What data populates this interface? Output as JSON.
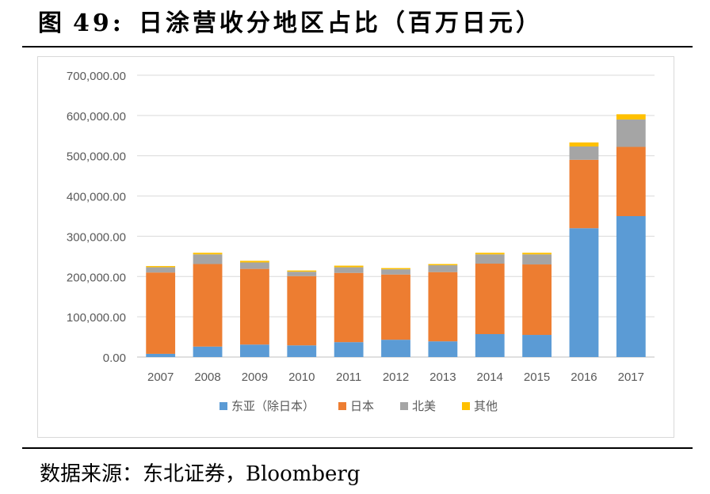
{
  "figure": {
    "label": "图",
    "number": "49:",
    "title": "日涂营收分地区占比（百万日元）"
  },
  "source": "数据来源：东北证券，Bloomberg",
  "chart_data": {
    "type": "bar",
    "stacked": true,
    "title": "",
    "xlabel": "",
    "ylabel": "",
    "categories": [
      "2007",
      "2008",
      "2009",
      "2010",
      "2011",
      "2012",
      "2013",
      "2014",
      "2015",
      "2016",
      "2017"
    ],
    "ylim": [
      0,
      700000
    ],
    "yticks": [
      0,
      100000,
      200000,
      300000,
      400000,
      500000,
      600000,
      700000
    ],
    "ytick_labels": [
      "0.00",
      "100,000.00",
      "200,000.00",
      "300,000.00",
      "400,000.00",
      "500,000.00",
      "600,000.00",
      "700,000.00"
    ],
    "grid": true,
    "legend_position": "bottom",
    "series": [
      {
        "name": "东亚（除日本）",
        "color": "#5b9bd5",
        "values": [
          8000,
          26000,
          31000,
          29000,
          37000,
          43000,
          39000,
          57000,
          55000,
          320000,
          350000
        ]
      },
      {
        "name": "日本",
        "color": "#ed7d31",
        "values": [
          202000,
          205000,
          188000,
          172000,
          172000,
          162000,
          172000,
          175000,
          175000,
          170000,
          172000
        ]
      },
      {
        "name": "北美",
        "color": "#a5a5a5",
        "values": [
          13000,
          24000,
          16000,
          11000,
          14000,
          13000,
          17000,
          23000,
          25000,
          33000,
          68000
        ]
      },
      {
        "name": "其他",
        "color": "#ffc000",
        "values": [
          3000,
          4000,
          4000,
          3000,
          4000,
          3000,
          3000,
          4000,
          4000,
          10000,
          13000
        ]
      }
    ]
  }
}
